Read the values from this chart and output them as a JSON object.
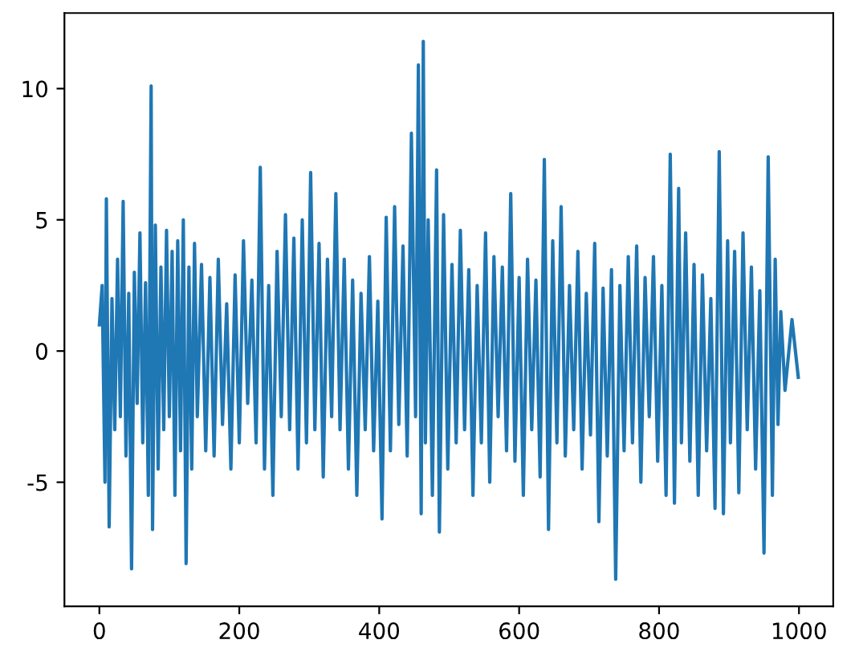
{
  "chart_data": {
    "type": "line",
    "x": [
      0,
      4,
      8,
      10,
      14,
      18,
      22,
      26,
      30,
      34,
      38,
      42,
      46,
      50,
      54,
      58,
      62,
      66,
      70,
      74,
      76,
      80,
      84,
      88,
      92,
      96,
      100,
      104,
      108,
      112,
      116,
      120,
      124,
      128,
      132,
      136,
      140,
      146,
      152,
      158,
      164,
      170,
      176,
      182,
      188,
      194,
      200,
      206,
      212,
      218,
      224,
      230,
      236,
      242,
      248,
      254,
      260,
      266,
      272,
      278,
      284,
      290,
      296,
      302,
      308,
      314,
      320,
      326,
      332,
      338,
      344,
      350,
      356,
      362,
      368,
      374,
      380,
      386,
      392,
      398,
      404,
      410,
      416,
      422,
      428,
      434,
      440,
      446,
      452,
      456,
      460,
      463,
      466,
      470,
      476,
      482,
      486,
      492,
      498,
      504,
      510,
      516,
      522,
      528,
      534,
      540,
      546,
      552,
      558,
      564,
      570,
      576,
      582,
      588,
      594,
      600,
      606,
      612,
      618,
      624,
      630,
      636,
      642,
      648,
      654,
      660,
      666,
      672,
      678,
      684,
      690,
      696,
      702,
      708,
      714,
      720,
      726,
      732,
      738,
      744,
      750,
      756,
      762,
      768,
      774,
      780,
      786,
      792,
      798,
      804,
      810,
      816,
      822,
      828,
      832,
      838,
      844,
      850,
      856,
      862,
      868,
      874,
      880,
      886,
      892,
      898,
      902,
      908,
      914,
      920,
      926,
      932,
      938,
      944,
      950,
      956,
      962,
      966,
      970,
      974,
      980,
      990,
      999
    ],
    "values": [
      1,
      2.5,
      -5,
      5.8,
      -6.7,
      2,
      -3,
      3.5,
      -2.5,
      5.7,
      -4,
      2.2,
      -8.3,
      3,
      -2,
      4.5,
      -3.5,
      2.6,
      -5.5,
      10.1,
      -6.8,
      4.8,
      -4.5,
      3.2,
      -3,
      4.6,
      -2.5,
      3.8,
      -5.5,
      4.2,
      -3.8,
      5,
      -8.1,
      3.2,
      -4.5,
      4.1,
      -2.5,
      3.3,
      -3.8,
      2.8,
      -4,
      3.5,
      -2.8,
      1.8,
      -4.5,
      2.9,
      -3.5,
      4.2,
      -2,
      2.7,
      -3.5,
      7,
      -4.5,
      2.5,
      -5.5,
      3.8,
      -2.5,
      5.2,
      -3,
      4.3,
      -4.5,
      5,
      -3.5,
      6.8,
      -3,
      4.1,
      -4.8,
      3.5,
      -2.5,
      6,
      -3,
      3.5,
      -4.5,
      2.7,
      -5.5,
      2.2,
      -3,
      3.6,
      -3.8,
      1.9,
      -6.4,
      5.1,
      -3.8,
      5.5,
      -2.8,
      4,
      -4,
      8.3,
      -2.5,
      10.9,
      -6.2,
      11.8,
      -3.5,
      5,
      -5.5,
      6.9,
      -6.9,
      5.2,
      -4.5,
      3.3,
      -3.5,
      4.6,
      -3,
      3.1,
      -5.5,
      2.5,
      -3.5,
      4.5,
      -5,
      3.6,
      -2.5,
      3.2,
      -3.8,
      6,
      -4.2,
      2.8,
      -5.5,
      3.5,
      -3,
      2.7,
      -4.8,
      7.3,
      -6.8,
      4.2,
      -3.5,
      5.5,
      -4,
      2.5,
      -3,
      3.8,
      -4.5,
      2.2,
      -3.2,
      4.1,
      -6.5,
      2.4,
      -4,
      3.1,
      -8.7,
      2.5,
      -3.8,
      3.6,
      -3.5,
      4,
      -5,
      2.8,
      -2.5,
      3.6,
      -4.2,
      2.5,
      -5.5,
      7.5,
      -5.8,
      6.2,
      -3.5,
      4.5,
      -4.2,
      3.3,
      -5.5,
      2.9,
      -3.8,
      2,
      -6,
      7.6,
      -6.2,
      4.2,
      -3.5,
      3.8,
      -5.4,
      4.5,
      -3,
      3.2,
      -4.5,
      2.3,
      -7.7,
      7.4,
      -5.5,
      3.5,
      -2.8,
      1.5,
      -1.5,
      1.2,
      -1
    ],
    "color": "#1f77b4",
    "xlim": [
      -49.95,
      1048.95
    ],
    "ylim": [
      -9.73,
      12.88
    ],
    "xticks": [
      0,
      200,
      400,
      600,
      800,
      1000
    ],
    "yticks": [
      -5,
      0,
      5,
      10
    ],
    "grid": false
  }
}
